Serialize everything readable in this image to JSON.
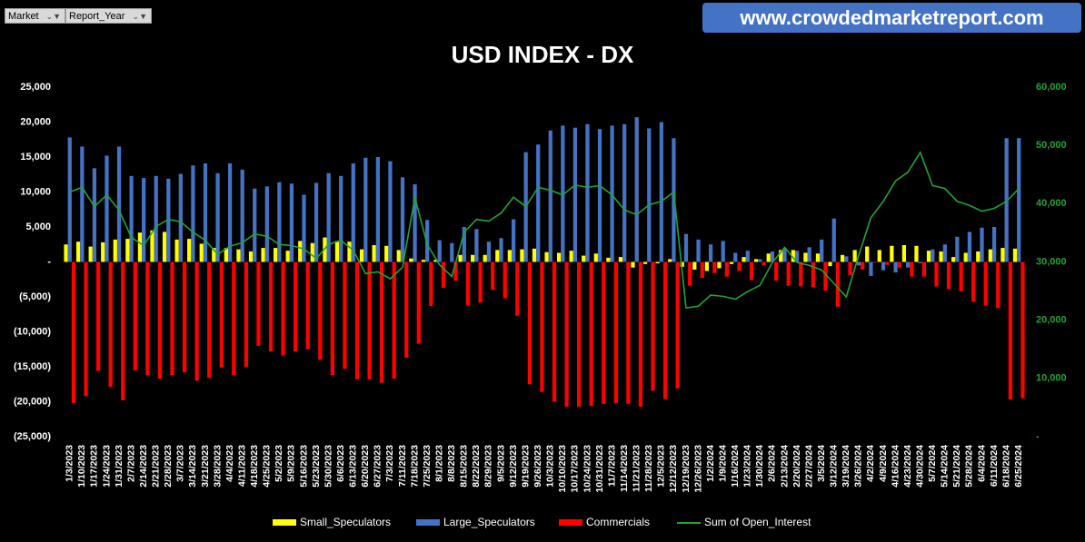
{
  "filters": [
    "Market",
    "Report_Year"
  ],
  "banner": "www.crowdedmarketreport.com",
  "chart_data": {
    "type": "bar",
    "title": "USD INDEX - DX",
    "categories": [
      "1/3/2023",
      "1/10/2023",
      "1/17/2023",
      "1/24/2023",
      "1/31/2023",
      "2/7/2023",
      "2/14/2023",
      "2/21/2023",
      "2/28/2023",
      "3/7/2023",
      "3/14/2023",
      "3/21/2023",
      "3/28/2023",
      "4/4/2023",
      "4/11/2023",
      "4/18/2023",
      "4/25/2023",
      "5/2/2023",
      "5/9/2023",
      "5/16/2023",
      "5/23/2023",
      "5/30/2023",
      "6/6/2023",
      "6/13/2023",
      "6/20/2023",
      "6/27/2023",
      "7/3/2023",
      "7/11/2023",
      "7/18/2023",
      "7/25/2023",
      "8/1/2023",
      "8/8/2023",
      "8/15/2023",
      "8/22/2023",
      "8/29/2023",
      "9/5/2023",
      "9/12/2023",
      "9/19/2023",
      "9/26/2023",
      "10/3/2023",
      "10/10/2023",
      "10/17/2023",
      "10/24/2023",
      "10/31/2023",
      "11/7/2023",
      "11/14/2023",
      "11/21/2023",
      "11/28/2023",
      "12/5/2023",
      "12/12/2023",
      "12/19/2023",
      "12/26/2023",
      "1/2/2024",
      "1/9/2024",
      "1/16/2024",
      "1/23/2024",
      "1/30/2024",
      "2/6/2024",
      "2/13/2024",
      "2/20/2024",
      "2/27/2024",
      "3/5/2024",
      "3/12/2024",
      "3/19/2024",
      "3/26/2024",
      "4/2/2024",
      "4/9/2024",
      "4/16/2024",
      "4/23/2024",
      "4/30/2024",
      "5/7/2024",
      "5/14/2024",
      "5/21/2024",
      "5/28/2024",
      "6/4/2024",
      "6/11/2024",
      "6/18/2024",
      "6/25/2024"
    ],
    "series": [
      {
        "name": "Small_Speculators",
        "type": "bar",
        "color": "#ffff00",
        "values": [
          2500,
          2900,
          2200,
          2800,
          3200,
          3300,
          4200,
          4500,
          4300,
          3200,
          3300,
          2600,
          2000,
          2000,
          1800,
          1500,
          2000,
          2000,
          1600,
          3000,
          2700,
          3500,
          3000,
          2900,
          1800,
          2400,
          2300,
          1700,
          500,
          300,
          300,
          0,
          1000,
          1000,
          1000,
          1700,
          1700,
          1800,
          1900,
          1400,
          1300,
          1600,
          900,
          1200,
          600,
          700,
          -800,
          -300,
          -200,
          400,
          -700,
          -1100,
          -1300,
          -900,
          -300,
          700,
          400,
          1200,
          1700,
          1700,
          1300,
          1200,
          -600,
          1000,
          1700,
          2200,
          1700,
          2300,
          2400,
          2300,
          1600,
          1500,
          700,
          1300,
          1500,
          1800,
          2000,
          1900
        ]
      },
      {
        "name": "Large_Speculators",
        "type": "bar",
        "color": "#4472c4",
        "values": [
          17800,
          16500,
          13400,
          15200,
          16500,
          12300,
          12000,
          12300,
          11900,
          12600,
          13800,
          14100,
          12700,
          14100,
          13200,
          10500,
          10800,
          11400,
          11200,
          9600,
          11300,
          12700,
          12300,
          14100,
          14900,
          15000,
          14400,
          12100,
          11100,
          6000,
          3100,
          2700,
          5000,
          4700,
          2900,
          3400,
          6100,
          15700,
          16800,
          18800,
          19500,
          19200,
          19700,
          19000,
          19500,
          19700,
          20700,
          19100,
          20000,
          17700,
          4000,
          3200,
          2500,
          3000,
          1300,
          1600,
          400,
          1500,
          2000,
          1600,
          2100,
          3200,
          6200,
          800,
          -500,
          -2000,
          -1200,
          -1500,
          -800,
          -200,
          1800,
          2500,
          3600,
          4300,
          4900,
          5000,
          17700,
          17700
        ]
      },
      {
        "name": "Commercials",
        "type": "bar",
        "color": "#ff0000",
        "values": [
          -20200,
          -19200,
          -15600,
          -17900,
          -19800,
          -15500,
          -16200,
          -16700,
          -16200,
          -15800,
          -17000,
          -16600,
          -15100,
          -16200,
          -15000,
          -12000,
          -12800,
          -13400,
          -12800,
          -12500,
          -14000,
          -16200,
          -15300,
          -16800,
          -16800,
          -17300,
          -16700,
          -13700,
          -11700,
          -6300,
          -3700,
          -2700,
          -6200,
          -5800,
          -4000,
          -5200,
          -7700,
          -17500,
          -18600,
          -20000,
          -20700,
          -20700,
          -20600,
          -20300,
          -20200,
          -20300,
          -20700,
          -18400,
          -19600,
          -18100,
          -3400,
          -2300,
          -1600,
          -2100,
          -1300,
          -2600,
          -500,
          -2700,
          -3400,
          -3500,
          -3600,
          -4100,
          -6400,
          -1900,
          -1100,
          -100,
          -400,
          -800,
          -2100,
          -2100,
          -3500,
          -3900,
          -4200,
          -5700,
          -6200,
          -6600,
          -19700,
          -19500
        ]
      },
      {
        "name": "Sum of Open_Interest",
        "type": "line",
        "axis": "y2",
        "color": "#22a336",
        "values": [
          42000,
          42800,
          39500,
          41500,
          38900,
          34200,
          32800,
          36100,
          37300,
          36900,
          35100,
          33700,
          31300,
          32700,
          33300,
          34800,
          34400,
          33000,
          32800,
          32200,
          30600,
          33000,
          33700,
          32000,
          28000,
          28300,
          27100,
          29100,
          41100,
          33000,
          29500,
          27500,
          35100,
          37300,
          37000,
          38400,
          41100,
          39500,
          42800,
          42300,
          41500,
          43200,
          42800,
          43100,
          41500,
          38900,
          38100,
          39800,
          40400,
          42000,
          22100,
          22400,
          24300,
          24100,
          23600,
          24900,
          26000,
          29900,
          32500,
          29900,
          29400,
          28600,
          26300,
          24000,
          31100,
          37600,
          40400,
          43900,
          45400,
          48800,
          43100,
          42600,
          40400,
          39700,
          38700,
          39200,
          40400,
          42600
        ]
      }
    ],
    "ylim": [
      -25000,
      25000
    ],
    "yticks": [
      {
        "value": -25000,
        "label": "(25,000)"
      },
      {
        "value": -20000,
        "label": "(20,000)"
      },
      {
        "value": -15000,
        "label": "(15,000)"
      },
      {
        "value": -10000,
        "label": "(10,000)"
      },
      {
        "value": -5000,
        "label": "(5,000)"
      },
      {
        "value": 0,
        "label": "-"
      },
      {
        "value": 5000,
        "label": "5,000"
      },
      {
        "value": 10000,
        "label": "10,000"
      },
      {
        "value": 15000,
        "label": "15,000"
      },
      {
        "value": 20000,
        "label": "20,000"
      },
      {
        "value": 25000,
        "label": "25,000"
      }
    ],
    "y2lim": [
      0,
      60000
    ],
    "y2ticks": [
      {
        "value": 0,
        "label": "-"
      },
      {
        "value": 10000,
        "label": "10,000"
      },
      {
        "value": 20000,
        "label": "20,000"
      },
      {
        "value": 30000,
        "label": "30,000"
      },
      {
        "value": 40000,
        "label": "40,000"
      },
      {
        "value": 50000,
        "label": "50,000"
      },
      {
        "value": 60000,
        "label": "60,000"
      }
    ],
    "grid": false,
    "legend": "bottom"
  }
}
